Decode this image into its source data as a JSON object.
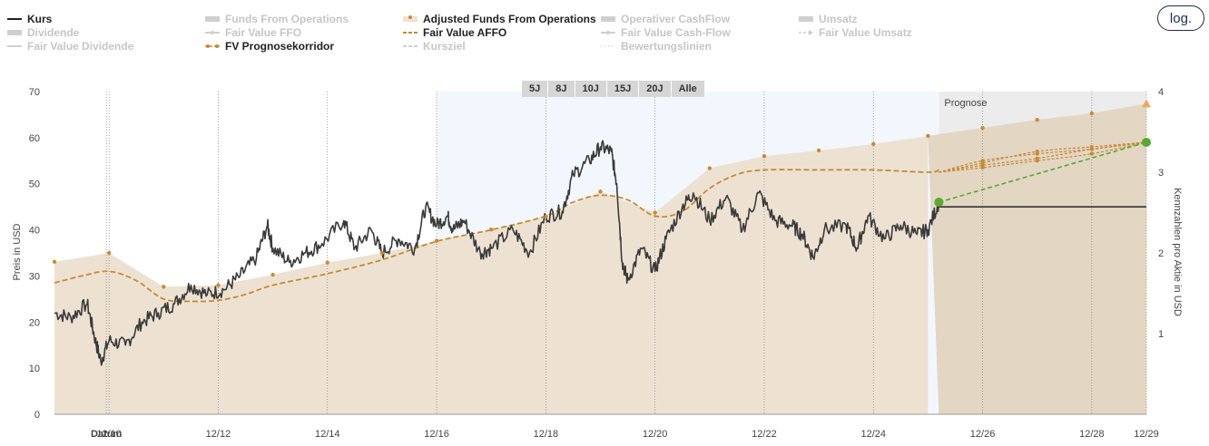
{
  "legend": [
    {
      "label": "Kurs",
      "active": true,
      "style": "solid-dark"
    },
    {
      "label": "Funds From Operations",
      "active": false,
      "style": "area"
    },
    {
      "label": "Adjusted Funds From Operations",
      "active": true,
      "style": "dots-area"
    },
    {
      "label": "Operativer CashFlow",
      "active": false,
      "style": "area"
    },
    {
      "label": "Umsatz",
      "active": false,
      "style": "area"
    },
    {
      "label": "Dividende",
      "active": false,
      "style": "area"
    },
    {
      "label": "Fair Value FFO",
      "active": false,
      "style": "dash-dot"
    },
    {
      "label": "Fair Value AFFO",
      "active": true,
      "style": "dash"
    },
    {
      "label": "Fair Value Cash-Flow",
      "active": false,
      "style": "dash-dot"
    },
    {
      "label": "Fair Value Umsatz",
      "active": false,
      "style": "arrow"
    },
    {
      "label": "Fair Value Dividende",
      "active": false,
      "style": "solid"
    },
    {
      "label": "FV Prognosekorridor",
      "active": true,
      "style": "dots-dash"
    },
    {
      "label": "Kursziel",
      "active": false,
      "style": "dash"
    },
    {
      "label": "Bewertungslinien",
      "active": false,
      "style": "dots"
    }
  ],
  "log_button": "log.",
  "range_buttons": [
    "5J",
    "8J",
    "10J",
    "15J",
    "20J",
    "Alle"
  ],
  "prognose_label": "Prognose",
  "colors": {
    "price": "#3a3a3a",
    "affo_area": "#ede2d2",
    "affo_area_forecast": "#e3d6c3",
    "affo_dots": "#c98a3a",
    "fair_value": "#c68a36",
    "target_line": "#58a832",
    "target_marker": "#f0a860",
    "shade_blue": "#f2f7fd",
    "prognose_shade": "#ececec"
  },
  "chart_data": {
    "type": "line",
    "title": "",
    "xlabel": "Datum",
    "ylabel_left": "Preis in USD",
    "ylabel_right": "Kennzahlen pro Aktie in USD",
    "x_tick_labels": [
      "12/10",
      "12/12",
      "12/14",
      "12/16",
      "12/18",
      "12/20",
      "12/22",
      "12/24",
      "12/26",
      "12/28",
      "12/29"
    ],
    "x_range": [
      2009.0,
      2029.0
    ],
    "ylim_left": [
      0,
      70
    ],
    "y_ticks_left": [
      0,
      10,
      20,
      30,
      40,
      50,
      60,
      70
    ],
    "ylim_right": [
      0,
      4
    ],
    "y_ticks_right": [
      1,
      2,
      3,
      4
    ],
    "forecast_start": 2025.2,
    "series": [
      {
        "name": "Kurs",
        "axis": "left",
        "points": [
          [
            2009.0,
            22
          ],
          [
            2009.3,
            21
          ],
          [
            2009.6,
            24
          ],
          [
            2009.75,
            16
          ],
          [
            2009.85,
            11.5
          ],
          [
            2010.0,
            16
          ],
          [
            2010.3,
            15
          ],
          [
            2010.6,
            20
          ],
          [
            2010.9,
            22
          ],
          [
            2011.2,
            24
          ],
          [
            2011.5,
            28
          ],
          [
            2011.8,
            26
          ],
          [
            2012.1,
            27
          ],
          [
            2012.4,
            30
          ],
          [
            2012.7,
            34
          ],
          [
            2012.9,
            41
          ],
          [
            2013.0,
            36
          ],
          [
            2013.3,
            33
          ],
          [
            2013.6,
            35
          ],
          [
            2013.9,
            37
          ],
          [
            2014.3,
            42
          ],
          [
            2014.5,
            36
          ],
          [
            2014.8,
            40
          ],
          [
            2015.0,
            35
          ],
          [
            2015.3,
            38
          ],
          [
            2015.6,
            36
          ],
          [
            2015.8,
            45
          ],
          [
            2016.0,
            41
          ],
          [
            2016.2,
            43
          ],
          [
            2016.3,
            40
          ],
          [
            2016.5,
            42
          ],
          [
            2016.8,
            35
          ],
          [
            2017.0,
            36
          ],
          [
            2017.4,
            40
          ],
          [
            2017.7,
            35
          ],
          [
            2018.0,
            43
          ],
          [
            2018.3,
            44
          ],
          [
            2018.5,
            52
          ],
          [
            2018.8,
            55
          ],
          [
            2019.0,
            58
          ],
          [
            2019.2,
            57
          ],
          [
            2019.3,
            50
          ],
          [
            2019.4,
            33
          ],
          [
            2019.5,
            29
          ],
          [
            2019.75,
            36
          ],
          [
            2020.0,
            31
          ],
          [
            2020.2,
            38
          ],
          [
            2020.5,
            45
          ],
          [
            2020.7,
            48
          ],
          [
            2021.0,
            42
          ],
          [
            2021.3,
            47
          ],
          [
            2021.6,
            40
          ],
          [
            2021.9,
            48
          ],
          [
            2022.2,
            42
          ],
          [
            2022.5,
            41
          ],
          [
            2022.7,
            39
          ],
          [
            2022.9,
            34
          ],
          [
            2023.1,
            40
          ],
          [
            2023.5,
            41
          ],
          [
            2023.7,
            36
          ],
          [
            2023.9,
            43
          ],
          [
            2024.2,
            38
          ],
          [
            2024.5,
            41
          ],
          [
            2024.8,
            39
          ],
          [
            2025.0,
            40
          ],
          [
            2025.2,
            46
          ]
        ]
      },
      {
        "name": "Kursziel",
        "axis": "left",
        "points": [
          [
            2025.2,
            45
          ],
          [
            2029.0,
            45
          ]
        ]
      },
      {
        "name": "Adjusted Funds From Operations",
        "axis": "right",
        "points": [
          [
            2009.0,
            1.89
          ],
          [
            2010.0,
            2.0
          ],
          [
            2011.0,
            1.58
          ],
          [
            2012.0,
            1.6
          ],
          [
            2013.0,
            1.73
          ],
          [
            2014.0,
            1.88
          ],
          [
            2015.0,
            2.0
          ],
          [
            2016.0,
            2.15
          ],
          [
            2017.0,
            2.29
          ],
          [
            2018.0,
            2.45
          ],
          [
            2019.0,
            2.76
          ],
          [
            2020.0,
            2.5
          ],
          [
            2021.0,
            3.05
          ],
          [
            2022.0,
            3.2
          ],
          [
            2023.0,
            3.27
          ],
          [
            2024.0,
            3.35
          ],
          [
            2025.0,
            3.45
          ],
          [
            2026.0,
            3.55
          ],
          [
            2027.0,
            3.65
          ],
          [
            2028.0,
            3.73
          ],
          [
            2029.0,
            3.85
          ]
        ]
      },
      {
        "name": "Fair Value AFFO",
        "axis": "left",
        "points": [
          [
            2009.0,
            28.5
          ],
          [
            2009.5,
            30
          ],
          [
            2010.0,
            31
          ],
          [
            2010.5,
            29
          ],
          [
            2011.0,
            25
          ],
          [
            2011.5,
            24.5
          ],
          [
            2012.0,
            24.7
          ],
          [
            2012.5,
            26
          ],
          [
            2013.0,
            28
          ],
          [
            2014.0,
            30.5
          ],
          [
            2015.0,
            33.5
          ],
          [
            2016.0,
            37.5
          ],
          [
            2017.0,
            40
          ],
          [
            2018.0,
            43
          ],
          [
            2018.5,
            46
          ],
          [
            2019.0,
            47.5
          ],
          [
            2019.5,
            46.5
          ],
          [
            2020.0,
            43
          ],
          [
            2020.5,
            44
          ],
          [
            2021.0,
            49
          ],
          [
            2021.5,
            52
          ],
          [
            2022.0,
            53
          ],
          [
            2023.0,
            53
          ],
          [
            2024.0,
            53
          ],
          [
            2025.0,
            52.5
          ],
          [
            2025.2,
            53
          ]
        ]
      },
      {
        "name": "FV Prognosekorridor",
        "axis": "left",
        "points": [
          [
            2025.2,
            52.5
          ],
          [
            2026.0,
            55
          ],
          [
            2027.0,
            56.5
          ],
          [
            2028.0,
            57.5
          ],
          [
            2029.0,
            59
          ]
        ]
      },
      {
        "name": "FV Prognosekorridor",
        "axis": "left",
        "points": [
          [
            2025.2,
            52.5
          ],
          [
            2026.0,
            54.5
          ],
          [
            2027.0,
            57
          ],
          [
            2028.0,
            58
          ],
          [
            2029.0,
            59
          ]
        ]
      },
      {
        "name": "FV Prognosekorridor",
        "axis": "left",
        "points": [
          [
            2025.2,
            52.5
          ],
          [
            2026.0,
            54
          ],
          [
            2027.0,
            55.5
          ],
          [
            2028.0,
            57.5
          ],
          [
            2029.0,
            59
          ]
        ]
      },
      {
        "name": "FV Prognosekorridor",
        "axis": "left",
        "points": [
          [
            2025.2,
            52.5
          ],
          [
            2026.0,
            53.5
          ],
          [
            2027.0,
            55
          ],
          [
            2028.0,
            56.5
          ],
          [
            2029.0,
            59
          ]
        ]
      }
    ],
    "legend_position": "top",
    "grid": "vertical-dotted"
  }
}
